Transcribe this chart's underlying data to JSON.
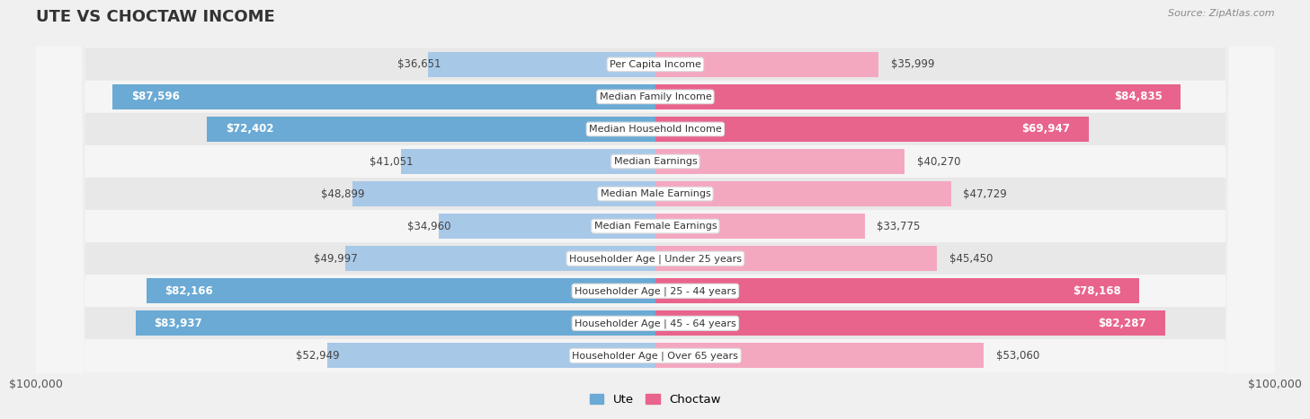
{
  "title": "UTE VS CHOCTAW INCOME",
  "source": "Source: ZipAtlas.com",
  "categories": [
    "Per Capita Income",
    "Median Family Income",
    "Median Household Income",
    "Median Earnings",
    "Median Male Earnings",
    "Median Female Earnings",
    "Householder Age | Under 25 years",
    "Householder Age | 25 - 44 years",
    "Householder Age | 45 - 64 years",
    "Householder Age | Over 65 years"
  ],
  "ute_values": [
    36651,
    87596,
    72402,
    41051,
    48899,
    34960,
    49997,
    82166,
    83937,
    52949
  ],
  "choctaw_values": [
    35999,
    84835,
    69947,
    40270,
    47729,
    33775,
    45450,
    78168,
    82287,
    53060
  ],
  "ute_labels": [
    "$36,651",
    "$87,596",
    "$72,402",
    "$41,051",
    "$48,899",
    "$34,960",
    "$49,997",
    "$82,166",
    "$83,937",
    "$52,949"
  ],
  "choctaw_labels": [
    "$35,999",
    "$84,835",
    "$69,947",
    "$40,270",
    "$47,729",
    "$33,775",
    "$45,450",
    "$78,168",
    "$82,287",
    "$53,060"
  ],
  "ute_color_light": "#a8c8e8",
  "ute_color_dark": "#6aaad4",
  "choctaw_color_light": "#f4a8c0",
  "choctaw_color_dark": "#e8648c",
  "axis_limit": 100000,
  "xlabel_left": "$100,000",
  "xlabel_right": "$100,000",
  "legend_ute": "Ute",
  "legend_choctaw": "Choctaw",
  "bg_color": "#f0f0f0",
  "row_bg_color": "#e8e8e8",
  "row_alt_color": "#f5f5f5",
  "inside_label_threshold": 60000,
  "title_fontsize": 13,
  "label_fontsize": 8.5,
  "category_fontsize": 8.0
}
